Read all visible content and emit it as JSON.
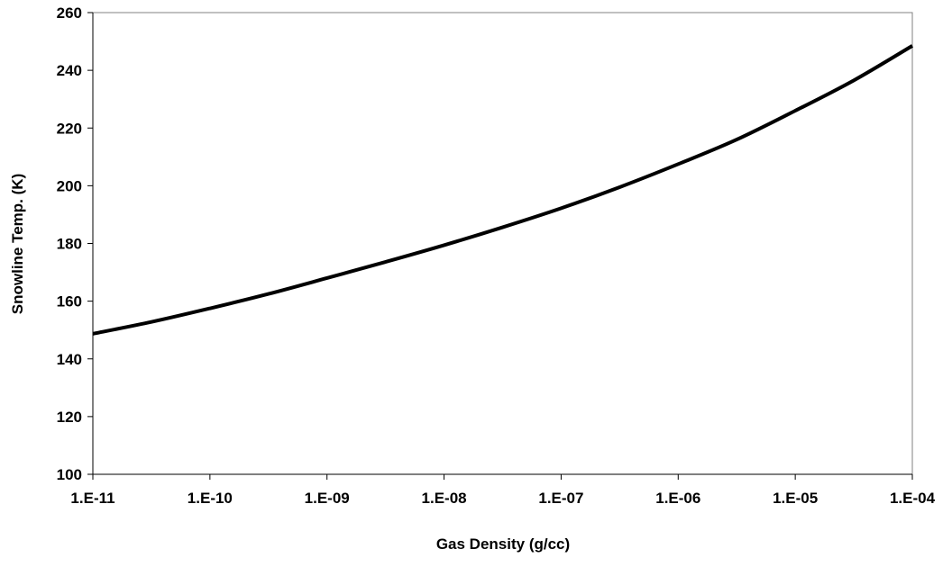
{
  "chart_data": {
    "type": "line",
    "title": "",
    "xlabel": "Gas Density (g/cc)",
    "ylabel": "Snowline Temp. (K)",
    "x_scale": "log",
    "x_ticks": [
      1e-11,
      1e-10,
      1e-09,
      1e-08,
      1e-07,
      1e-06,
      1e-05,
      0.0001
    ],
    "x_tick_labels": [
      "1.E-11",
      "1.E-10",
      "1.E-09",
      "1.E-08",
      "1.E-07",
      "1.E-06",
      "1.E-05",
      "1.E-04"
    ],
    "xlim": [
      1e-11,
      0.0001
    ],
    "y_ticks": [
      100,
      120,
      140,
      160,
      180,
      200,
      220,
      240,
      260
    ],
    "y_tick_labels": [
      "100",
      "120",
      "140",
      "160",
      "180",
      "200",
      "220",
      "240",
      "260"
    ],
    "ylim": [
      100,
      260
    ],
    "grid": false,
    "legend": "none",
    "line_color": "#000000",
    "series": [
      {
        "x": [
          1e-11,
          3.16e-11,
          1e-10,
          3.16e-10,
          1e-09,
          3.16e-09,
          1e-08,
          3.16e-08,
          1e-07,
          3.16e-07,
          1e-06,
          3.16e-06,
          1e-05,
          3.16e-05,
          0.0001
        ],
        "values": [
          148.7,
          152.8,
          157.5,
          162.5,
          168.0,
          173.6,
          179.4,
          185.6,
          192.2,
          199.5,
          207.5,
          216.0,
          226.0,
          236.5,
          248.5
        ]
      }
    ]
  }
}
